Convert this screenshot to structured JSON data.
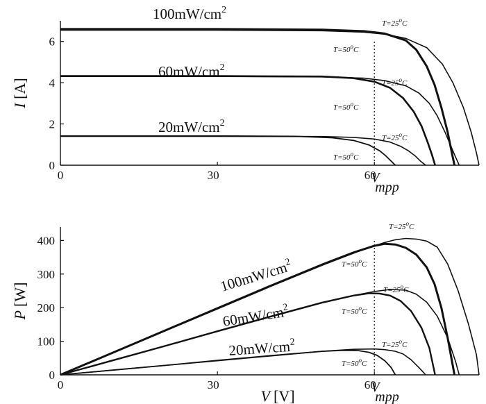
{
  "chart_data": [
    {
      "type": "line",
      "title": "",
      "xlabel": "",
      "ylabel": "I [A]",
      "xlim": [
        0,
        80
      ],
      "ylim": [
        0,
        7
      ],
      "xticks": [
        "0",
        "30",
        "60"
      ],
      "yticks": [
        "0",
        "2",
        "4",
        "6"
      ],
      "vline_label": "V",
      "vline_sub": "mpp",
      "vline_x": 60,
      "groups": [
        {
          "irradiance": "100mW/cm",
          "exponent": "2",
          "series": [
            {
              "temperature": "T=25°C",
              "x": [
                0,
                30,
                50,
                58,
                62,
                66,
                70,
                73,
                75,
                77,
                78.5,
                79.5,
                80
              ],
              "y": [
                6.55,
                6.55,
                6.52,
                6.45,
                6.35,
                6.15,
                5.7,
                4.9,
                4.0,
                2.8,
                1.6,
                0.6,
                0
              ]
            },
            {
              "temperature": "T=50°C",
              "x": [
                0,
                30,
                50,
                58,
                62,
                66,
                68,
                70,
                71.5,
                72.8,
                74,
                74.8,
                75.3
              ],
              "y": [
                6.6,
                6.6,
                6.57,
                6.5,
                6.38,
                6.05,
                5.6,
                4.8,
                3.9,
                2.8,
                1.6,
                0.6,
                0
              ]
            }
          ]
        },
        {
          "irradiance": "60mW/cm",
          "exponent": "2",
          "series": [
            {
              "temperature": "T=25°C",
              "x": [
                0,
                30,
                50,
                58,
                62,
                66,
                68.5,
                70.5,
                72,
                73.5,
                74.5,
                75.5,
                76.2
              ],
              "y": [
                4.3,
                4.3,
                4.28,
                4.22,
                4.1,
                3.85,
                3.5,
                3.0,
                2.4,
                1.6,
                1.0,
                0.4,
                0
              ]
            },
            {
              "temperature": "T=50°C",
              "x": [
                0,
                30,
                50,
                56,
                60,
                63,
                65.5,
                67.5,
                69,
                70.2,
                71,
                71.6
              ],
              "y": [
                4.32,
                4.32,
                4.3,
                4.22,
                4.05,
                3.75,
                3.25,
                2.6,
                1.9,
                1.1,
                0.5,
                0
              ]
            }
          ]
        },
        {
          "irradiance": "20mW/cm",
          "exponent": "2",
          "series": [
            {
              "temperature": "T=25°C",
              "x": [
                0,
                30,
                50,
                56,
                60,
                63,
                65,
                66.5,
                67.8,
                68.8,
                69.8
              ],
              "y": [
                1.4,
                1.4,
                1.39,
                1.35,
                1.27,
                1.12,
                0.92,
                0.7,
                0.45,
                0.2,
                0
              ]
            },
            {
              "temperature": "T=50°C",
              "x": [
                0,
                30,
                45,
                52,
                56,
                59,
                61,
                62.2,
                63.2,
                64
              ],
              "y": [
                1.42,
                1.42,
                1.4,
                1.33,
                1.2,
                0.98,
                0.7,
                0.45,
                0.2,
                0
              ]
            }
          ]
        }
      ]
    },
    {
      "type": "line",
      "title": "",
      "xlabel": "V [V]",
      "ylabel": "P [W]",
      "xlim": [
        0,
        80
      ],
      "ylim": [
        0,
        440
      ],
      "xticks": [
        "0",
        "30",
        "60"
      ],
      "yticks": [
        "0",
        "100",
        "200",
        "300",
        "400"
      ],
      "vline_label": "V",
      "vline_sub": "mpp",
      "vline_x": 60,
      "groups": [
        {
          "irradiance": "100mW/cm",
          "exponent": "2",
          "series": [
            {
              "temperature": "T=25°C",
              "x": [
                0,
                10,
                20,
                30,
                40,
                50,
                58,
                62,
                64,
                66,
                68,
                70,
                72,
                74,
                76,
                78,
                79.5,
                80
              ],
              "y": [
                0,
                65.5,
                131,
                196,
                262,
                326,
                374,
                394,
                402,
                406,
                404,
                398,
                380,
                330,
                250,
                150,
                60,
                0
              ]
            },
            {
              "temperature": "T=50°C",
              "x": [
                0,
                10,
                20,
                30,
                40,
                50,
                56,
                60,
                62,
                64,
                66,
                68,
                70,
                71.5,
                72.8,
                74,
                75.3
              ],
              "y": [
                0,
                66,
                132,
                198,
                264,
                328,
                364,
                384,
                390,
                388,
                378,
                358,
                320,
                270,
                200,
                110,
                0
              ]
            }
          ]
        },
        {
          "irradiance": "60mW/cm",
          "exponent": "2",
          "series": [
            {
              "temperature": "T=25°C",
              "x": [
                0,
                10,
                20,
                30,
                40,
                50,
                56,
                60,
                63,
                66,
                68,
                70,
                72,
                74,
                75.5,
                76.2
              ],
              "y": [
                0,
                43,
                86,
                129,
                172,
                214,
                236,
                248,
                254,
                252,
                240,
                216,
                175,
                110,
                40,
                0
              ]
            },
            {
              "temperature": "T=50°C",
              "x": [
                0,
                10,
                20,
                30,
                40,
                50,
                56,
                59,
                61,
                63,
                65,
                67,
                69,
                70.5,
                71.6
              ],
              "y": [
                0,
                43,
                86,
                130,
                173,
                215,
                236,
                243,
                242,
                236,
                220,
                190,
                140,
                80,
                0
              ]
            }
          ]
        },
        {
          "irradiance": "20mW/cm",
          "exponent": "2",
          "series": [
            {
              "temperature": "T=25°C",
              "x": [
                0,
                10,
                20,
                30,
                40,
                50,
                56,
                60,
                62,
                64,
                65.5,
                67,
                68.5,
                69.8
              ],
              "y": [
                0,
                14,
                28,
                42,
                56,
                70,
                76,
                77,
                75,
                70,
                62,
                45,
                22,
                0
              ]
            },
            {
              "temperature": "T=50°C",
              "x": [
                0,
                10,
                20,
                30,
                40,
                50,
                54,
                57,
                59,
                60.5,
                62,
                63.2,
                64
              ],
              "y": [
                0,
                14,
                28,
                43,
                57,
                70,
                73,
                72,
                67,
                58,
                42,
                22,
                0
              ]
            }
          ]
        }
      ]
    }
  ]
}
